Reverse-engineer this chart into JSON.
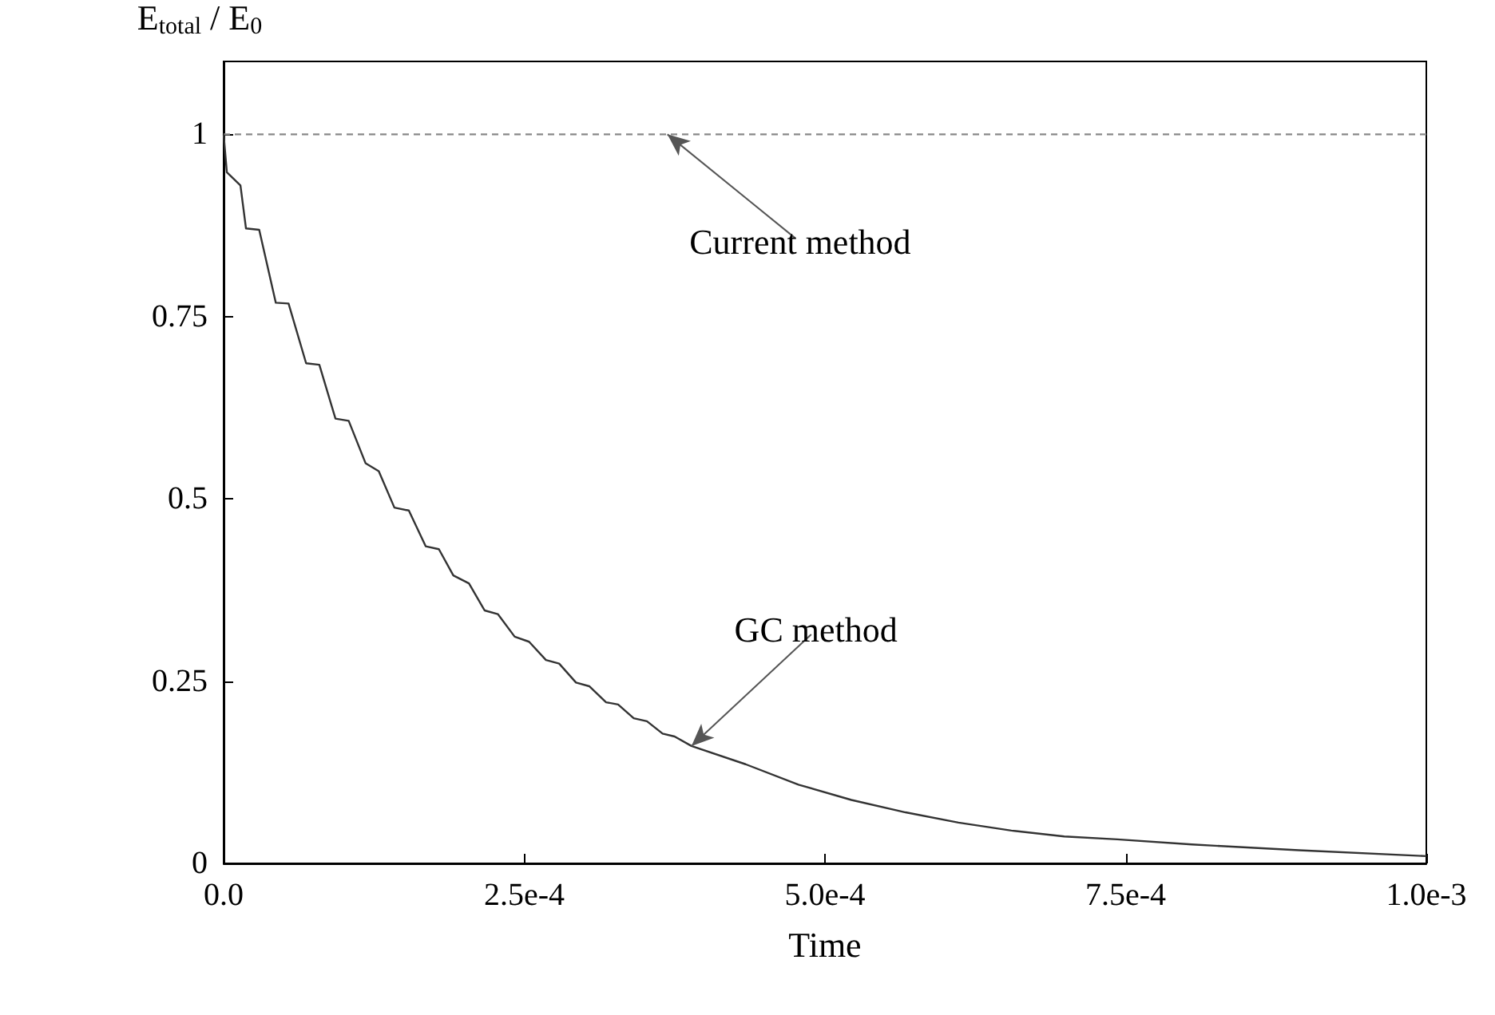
{
  "chart_data": {
    "type": "line",
    "xlabel": "Time",
    "ylabel": "E$_{total}$ / E$_{0}$",
    "xlim": [
      0,
      0.001
    ],
    "ylim": [
      0,
      1.1
    ],
    "xticks": [
      {
        "value": 0,
        "label": "0.0"
      },
      {
        "value": 0.00025,
        "label": "2.5e-4"
      },
      {
        "value": 0.0005,
        "label": "5.0e-4"
      },
      {
        "value": 0.00075,
        "label": "7.5e-4"
      },
      {
        "value": 0.001,
        "label": "1.0e-3"
      }
    ],
    "yticks": [
      0,
      0.25,
      0.5,
      0.75,
      1
    ],
    "marker": "none",
    "grid": false,
    "series": [
      {
        "color": "#888888",
        "line_style": "dashed",
        "x": [
          0,
          0.001
        ],
        "values": [
          1,
          1
        ]
      },
      {
        "color": "#333333",
        "line_style": "solid",
        "x": [
          0,
          2.7e-06,
          1.4e-05,
          1.86e-05,
          2.96e-05,
          4.34e-05,
          5.4e-05,
          6.86e-05,
          7.96e-05,
          9.3e-05,
          0.000104,
          0.000118,
          0.000129,
          0.000142,
          0.000154,
          0.000168,
          0.000179,
          0.000191,
          0.000204,
          0.000217,
          0.000228,
          0.000242,
          0.000254,
          0.000268,
          0.000279,
          0.000293,
          0.000304,
          0.000318,
          0.000328,
          0.000341,
          0.000352,
          0.000365,
          0.000375,
          0.000389,
          0.000434,
          0.000478,
          0.000522,
          0.000567,
          0.000611,
          0.000655,
          0.000699,
          0.000743,
          0.000805,
          0.000894,
          0.001
        ],
        "values": [
          1,
          0.948,
          0.93,
          0.871,
          0.869,
          0.769,
          0.768,
          0.686,
          0.684,
          0.61,
          0.607,
          0.549,
          0.538,
          0.488,
          0.484,
          0.435,
          0.431,
          0.395,
          0.384,
          0.347,
          0.342,
          0.311,
          0.304,
          0.279,
          0.274,
          0.248,
          0.243,
          0.221,
          0.218,
          0.199,
          0.195,
          0.178,
          0.174,
          0.161,
          0.136,
          0.108,
          0.087,
          0.07,
          0.056,
          0.045,
          0.037,
          0.033,
          0.026,
          0.018,
          0.01
        ]
      }
    ],
    "annotations": [
      {
        "text": "Current method",
        "x": 0.000369,
        "y": 1
      },
      {
        "text": "GC method",
        "x": 0.000389,
        "y": 0.161
      }
    ]
  }
}
